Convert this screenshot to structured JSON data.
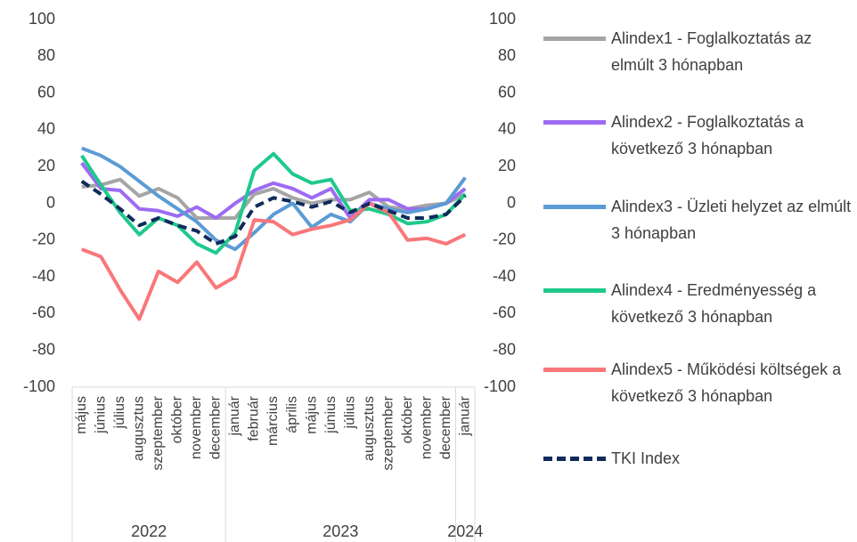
{
  "chart_data": {
    "type": "line",
    "categories": [
      "május",
      "június",
      "július",
      "augusztus",
      "szeptember",
      "október",
      "november",
      "december",
      "január",
      "február",
      "március",
      "április",
      "május",
      "június",
      "július",
      "augusztus",
      "szeptember",
      "október",
      "november",
      "december",
      "január"
    ],
    "groups": [
      {
        "label": "2022",
        "size": 8
      },
      {
        "label": "2023",
        "size": 12
      },
      {
        "label": "2024",
        "size": 1
      }
    ],
    "series": [
      {
        "name": "Alindex1 - Foglalkoztatás az elmúlt 3 hónapban",
        "color": "#a5a5a5",
        "values": [
          9,
          10,
          13,
          4,
          8,
          3,
          -8,
          -8,
          -8,
          5,
          8,
          3,
          0,
          2,
          2,
          6,
          -2,
          -3,
          -1,
          0,
          5
        ]
      },
      {
        "name": "Alindex2 -  Foglalkoztatás a következő 3 hónapban",
        "color": "#9d6bf2",
        "values": [
          22,
          8,
          7,
          -3,
          -4,
          -7,
          -2,
          -8,
          0,
          7,
          11,
          8,
          3,
          8,
          -8,
          2,
          2,
          -3,
          -3,
          0,
          8
        ]
      },
      {
        "name": "Alindex3 - Üzleti helyzet  az elmúlt 3 hónapban",
        "color": "#5b9bd5",
        "values": [
          30,
          26,
          20,
          12,
          4,
          -3,
          -10,
          -20,
          -25,
          -16,
          -6,
          0,
          -13,
          -6,
          -10,
          0,
          -3,
          -5,
          -3,
          0,
          14
        ]
      },
      {
        "name": "Alindex4 - Eredményesség a következő 3 hónapban",
        "color": "#1fc98c",
        "values": [
          26,
          10,
          -5,
          -17,
          -8,
          -12,
          -22,
          -27,
          -16,
          18,
          27,
          16,
          11,
          13,
          -4,
          -3,
          -6,
          -11,
          -10,
          -6,
          5
        ]
      },
      {
        "name": "Alindex5 - Működési költségek a következő 3 hónapban",
        "color": "#f8777a",
        "values": [
          -25,
          -29,
          -47,
          -63,
          -37,
          -43,
          -32,
          -46,
          -40,
          -9,
          -10,
          -17,
          -14,
          -12,
          -9,
          0,
          -5,
          -20,
          -19,
          -22,
          -17
        ]
      },
      {
        "name": "TKI Index",
        "color": "#0f2b5b",
        "dashed": true,
        "values": [
          12,
          5,
          -3,
          -12,
          -8,
          -12,
          -15,
          -22,
          -18,
          -2,
          3,
          1,
          -2,
          1,
          -5,
          0,
          -4,
          -8,
          -8,
          -6,
          4
        ]
      }
    ],
    "ylim": [
      -100,
      100
    ],
    "yticks": [
      -100,
      -80,
      -60,
      -40,
      -20,
      0,
      20,
      40,
      60,
      80,
      100
    ],
    "y2lim": [
      -100,
      100
    ],
    "y2ticks": [
      -100,
      -80,
      -60,
      -40,
      -20,
      0,
      20,
      40,
      60,
      80,
      100
    ],
    "legend": "right"
  }
}
